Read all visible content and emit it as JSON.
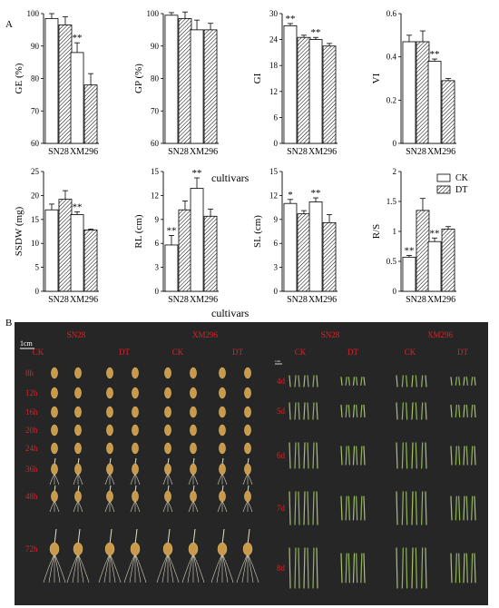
{
  "panel_labels": {
    "a": "A",
    "b": "B"
  },
  "shared_xlabel": "cultivars",
  "legend": {
    "ck": "CK",
    "dt": "DT"
  },
  "colors": {
    "ck_fill": "#ffffff",
    "dt_fill": "hatch",
    "photo_bg": "#262626",
    "photo_label": "#d8232a"
  },
  "chart_data": [
    {
      "type": "bar",
      "ylabel": "GE (%)",
      "ylim": [
        60,
        100
      ],
      "yticks": [
        60,
        70,
        80,
        90,
        100
      ],
      "categories": [
        "SN28",
        "XM296"
      ],
      "series": [
        {
          "name": "CK",
          "values": [
            98.5,
            88
          ],
          "errors": [
            1.5,
            3
          ]
        },
        {
          "name": "DT",
          "values": [
            96.5,
            78
          ],
          "errors": [
            2.5,
            3.5
          ]
        }
      ],
      "annotations": [
        {
          "category": "XM296",
          "text": "**"
        }
      ]
    },
    {
      "type": "bar",
      "ylabel": "GP (%)",
      "ylim": [
        60,
        100
      ],
      "yticks": [
        60,
        70,
        80,
        90,
        100
      ],
      "categories": [
        "SN28",
        "XM296"
      ],
      "series": [
        {
          "name": "CK",
          "values": [
            99.5,
            95
          ],
          "errors": [
            0.8,
            3
          ]
        },
        {
          "name": "DT",
          "values": [
            98.5,
            95
          ],
          "errors": [
            2,
            2
          ]
        }
      ],
      "annotations": []
    },
    {
      "type": "bar",
      "ylabel": "GI",
      "ylim": [
        0,
        30
      ],
      "yticks": [
        0,
        6,
        12,
        18,
        24,
        30
      ],
      "categories": [
        "SN28",
        "XM296"
      ],
      "series": [
        {
          "name": "CK",
          "values": [
            27.2,
            24
          ],
          "errors": [
            0.5,
            0.5
          ]
        },
        {
          "name": "DT",
          "values": [
            24.5,
            22.5
          ],
          "errors": [
            0.5,
            0.6
          ]
        }
      ],
      "annotations": [
        {
          "category": "SN28",
          "text": "**"
        },
        {
          "category": "XM296",
          "text": "**"
        }
      ]
    },
    {
      "type": "bar",
      "ylabel": "VI",
      "ylim": [
        0,
        0.6
      ],
      "yticks": [
        0,
        0.2,
        0.4,
        0.6
      ],
      "categories": [
        "SN28",
        "XM296"
      ],
      "series": [
        {
          "name": "CK",
          "values": [
            0.47,
            0.38
          ],
          "errors": [
            0.03,
            0.01
          ]
        },
        {
          "name": "DT",
          "values": [
            0.47,
            0.29
          ],
          "errors": [
            0.05,
            0.01
          ]
        }
      ],
      "annotations": [
        {
          "category": "XM296",
          "text": "**"
        }
      ]
    },
    {
      "type": "bar",
      "ylabel": "SSDW (mg)",
      "ylim": [
        0,
        25
      ],
      "yticks": [
        0,
        5,
        10,
        15,
        20,
        25
      ],
      "categories": [
        "SN28",
        "XM296"
      ],
      "series": [
        {
          "name": "CK",
          "values": [
            17,
            16
          ],
          "errors": [
            1.2,
            0.6
          ]
        },
        {
          "name": "DT",
          "values": [
            19.2,
            12.8
          ],
          "errors": [
            1.8,
            0.2
          ]
        }
      ],
      "annotations": [
        {
          "category": "XM296",
          "text": "**"
        }
      ]
    },
    {
      "type": "bar",
      "ylabel": "RL (cm)",
      "ylim": [
        0,
        15
      ],
      "yticks": [
        0,
        3,
        6,
        9,
        12,
        15
      ],
      "categories": [
        "SN28",
        "XM296"
      ],
      "series": [
        {
          "name": "CK",
          "values": [
            5.8,
            12.9
          ],
          "errors": [
            1.2,
            1.3
          ]
        },
        {
          "name": "DT",
          "values": [
            10.2,
            9.4
          ],
          "errors": [
            1.1,
            0.9
          ]
        }
      ],
      "annotations": [
        {
          "category": "SN28",
          "text": "**"
        },
        {
          "category": "XM296",
          "text": "**"
        }
      ]
    },
    {
      "type": "bar",
      "ylabel": "SL (cm)",
      "ylim": [
        0,
        15
      ],
      "yticks": [
        0,
        3,
        6,
        9,
        12,
        15
      ],
      "categories": [
        "SN28",
        "XM296"
      ],
      "series": [
        {
          "name": "CK",
          "values": [
            11,
            11.2
          ],
          "errors": [
            0.5,
            0.5
          ]
        },
        {
          "name": "DT",
          "values": [
            9.7,
            8.6
          ],
          "errors": [
            0.4,
            1
          ]
        }
      ],
      "annotations": [
        {
          "category": "SN28",
          "text": "*"
        },
        {
          "category": "XM296",
          "text": "**"
        }
      ]
    },
    {
      "type": "bar",
      "ylabel": "R/S",
      "ylim": [
        0,
        2
      ],
      "yticks": [
        0,
        0.5,
        1,
        1.5,
        2
      ],
      "categories": [
        "SN28",
        "XM296"
      ],
      "series": [
        {
          "name": "CK",
          "values": [
            0.57,
            0.83
          ],
          "errors": [
            0.03,
            0.06
          ]
        },
        {
          "name": "DT",
          "values": [
            1.35,
            1.04
          ],
          "errors": [
            0.2,
            0.04
          ]
        }
      ],
      "annotations": [
        {
          "category": "SN28",
          "text": "**"
        },
        {
          "category": "XM296",
          "text": "**"
        }
      ]
    }
  ],
  "photo_left": {
    "cultivars": [
      "SN28",
      "XM296"
    ],
    "treatments": [
      "CK",
      "DT",
      "CK",
      "DT"
    ],
    "scale": "1cm",
    "times": [
      "8h",
      "12h",
      "16h",
      "20h",
      "24h",
      "36h",
      "48h",
      "72h"
    ]
  },
  "photo_right": {
    "cultivars": [
      "SN28",
      "XM296"
    ],
    "treatments": [
      "CK",
      "DT",
      "CK",
      "DT"
    ],
    "scale": "1cm",
    "times": [
      "4d",
      "5d",
      "6d",
      "7d",
      "8d"
    ]
  }
}
